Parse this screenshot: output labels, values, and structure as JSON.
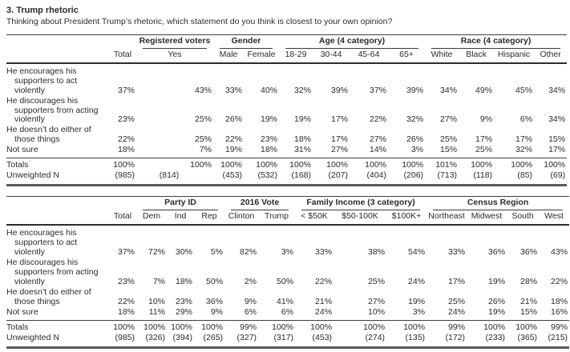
{
  "page": {
    "title": "3. Trump rhetoric",
    "subtitle": "Thinking about President Trump’s rhetoric, which statement do you think is closest to your own opinion?"
  },
  "tables": [
    {
      "name": "Demographics crosstab",
      "groups": [
        {
          "label": "",
          "span": 1,
          "underline": false
        },
        {
          "label": "Registered voters",
          "span": 1,
          "underline": true
        },
        {
          "label": "Gender",
          "span": 2,
          "underline": true
        },
        {
          "label": "Age (4 category)",
          "span": 4,
          "underline": true
        },
        {
          "label": "Race (4 category)",
          "span": 4,
          "underline": true
        }
      ],
      "columns": [
        "Total",
        "Yes",
        "Male",
        "Female",
        "18-29",
        "30-44",
        "45-64",
        "65+",
        "White",
        "Black",
        "Hispanic",
        "Other"
      ],
      "rows": [
        {
          "label": "He encourages his supporters to act violently",
          "values": [
            "37%",
            "43%",
            "33%",
            "40%",
            "32%",
            "39%",
            "37%",
            "39%",
            "34%",
            "49%",
            "45%",
            "34%"
          ]
        },
        {
          "label": "He discourages his supporters from acting violently",
          "values": [
            "23%",
            "25%",
            "26%",
            "19%",
            "19%",
            "17%",
            "22%",
            "32%",
            "27%",
            "9%",
            "6%",
            "34%"
          ]
        },
        {
          "label": "He doesn’t do either of those things",
          "values": [
            "22%",
            "25%",
            "22%",
            "23%",
            "18%",
            "17%",
            "27%",
            "26%",
            "25%",
            "17%",
            "17%",
            "15%"
          ]
        },
        {
          "label": "Not sure",
          "values": [
            "18%",
            "7%",
            "19%",
            "18%",
            "31%",
            "27%",
            "14%",
            "3%",
            "15%",
            "25%",
            "32%",
            "17%"
          ]
        }
      ],
      "footer": [
        {
          "label": "Totals",
          "values": [
            "100%",
            "100%",
            "100%",
            "100%",
            "100%",
            "100%",
            "100%",
            "100%",
            "101%",
            "100%",
            "100%",
            "100%"
          ]
        },
        {
          "label": "Unweighted N",
          "values": [
            "(985)",
            "(814)",
            "(453)",
            "(532)",
            "(168)",
            "(207)",
            "(404)",
            "(206)",
            "(713)",
            "(118)",
            "(85)",
            "(69)"
          ]
        }
      ]
    },
    {
      "name": "Politics crosstab",
      "groups": [
        {
          "label": "",
          "span": 1,
          "underline": false
        },
        {
          "label": "Party ID",
          "span": 3,
          "underline": true
        },
        {
          "label": "2016 Vote",
          "span": 2,
          "underline": true
        },
        {
          "label": "Family Income (3 category)",
          "span": 3,
          "underline": true
        },
        {
          "label": "Census Region",
          "span": 4,
          "underline": true
        }
      ],
      "columns": [
        "Total",
        "Dem",
        "Ind",
        "Rep",
        "Clinton",
        "Trump",
        "< $50K",
        "$50-100K",
        "$100K+",
        "Northeast",
        "Midwest",
        "South",
        "West"
      ],
      "rows": [
        {
          "label": "He encourages his supporters to act violently",
          "values": [
            "37%",
            "72%",
            "30%",
            "5%",
            "82%",
            "3%",
            "33%",
            "38%",
            "54%",
            "33%",
            "36%",
            "36%",
            "43%"
          ]
        },
        {
          "label": "He discourages his supporters from acting violently",
          "values": [
            "23%",
            "7%",
            "18%",
            "50%",
            "2%",
            "50%",
            "22%",
            "25%",
            "24%",
            "17%",
            "19%",
            "28%",
            "22%"
          ]
        },
        {
          "label": "He doesn’t do either of those things",
          "values": [
            "22%",
            "10%",
            "23%",
            "36%",
            "9%",
            "41%",
            "21%",
            "27%",
            "19%",
            "25%",
            "26%",
            "21%",
            "18%"
          ]
        },
        {
          "label": "Not sure",
          "values": [
            "18%",
            "11%",
            "29%",
            "9%",
            "6%",
            "6%",
            "24%",
            "10%",
            "3%",
            "24%",
            "19%",
            "15%",
            "16%"
          ]
        }
      ],
      "footer": [
        {
          "label": "Totals",
          "values": [
            "100%",
            "100%",
            "100%",
            "100%",
            "99%",
            "100%",
            "100%",
            "100%",
            "100%",
            "99%",
            "100%",
            "100%",
            "99%"
          ]
        },
        {
          "label": "Unweighted N",
          "values": [
            "(985)",
            "(326)",
            "(394)",
            "(265)",
            "(327)",
            "(317)",
            "(453)",
            "(274)",
            "(135)",
            "(172)",
            "(233)",
            "(365)",
            "(215)"
          ]
        }
      ]
    }
  ]
}
